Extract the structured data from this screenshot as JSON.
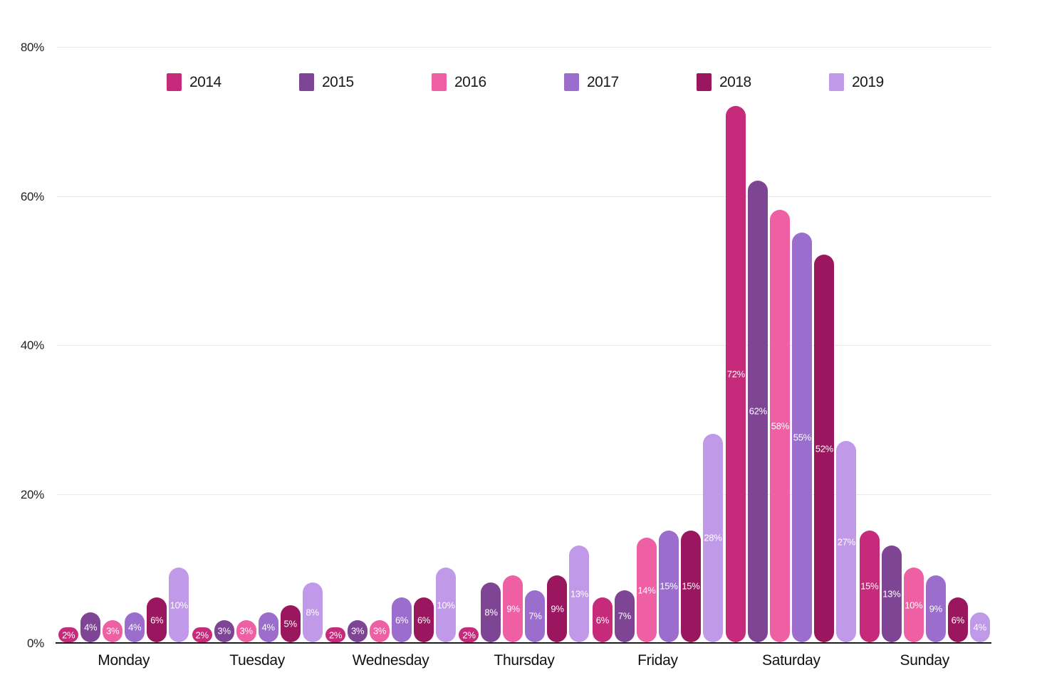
{
  "chart_data": {
    "type": "bar",
    "title": "",
    "categories": [
      "Monday",
      "Tuesday",
      "Wednesday",
      "Thursday",
      "Friday",
      "Saturday",
      "Sunday"
    ],
    "series": [
      {
        "name": "2014",
        "color": "#C62A7B",
        "values": [
          2,
          2,
          2,
          2,
          6,
          72,
          15
        ]
      },
      {
        "name": "2015",
        "color": "#7F4595",
        "values": [
          4,
          3,
          3,
          8,
          7,
          62,
          13
        ]
      },
      {
        "name": "2016",
        "color": "#EE5FA4",
        "values": [
          3,
          3,
          3,
          9,
          14,
          58,
          10
        ]
      },
      {
        "name": "2017",
        "color": "#9B6ECD",
        "values": [
          4,
          4,
          6,
          7,
          15,
          55,
          9
        ]
      },
      {
        "name": "2018",
        "color": "#9A175F",
        "values": [
          6,
          5,
          6,
          9,
          15,
          52,
          6
        ]
      },
      {
        "name": "2019",
        "color": "#C09AE8",
        "values": [
          10,
          8,
          10,
          13,
          28,
          27,
          4
        ]
      }
    ],
    "yticks": [
      0,
      20,
      40,
      60,
      80
    ],
    "ytick_labels": [
      "0%",
      "20%",
      "40%",
      "60%",
      "80%"
    ],
    "ylim": [
      0,
      80
    ],
    "bar_value_suffix": "%",
    "grid": "horizontal-only",
    "legend_position": "top",
    "axis_color": "#1a1a1a",
    "gridline_color": "#e9e9e9"
  }
}
